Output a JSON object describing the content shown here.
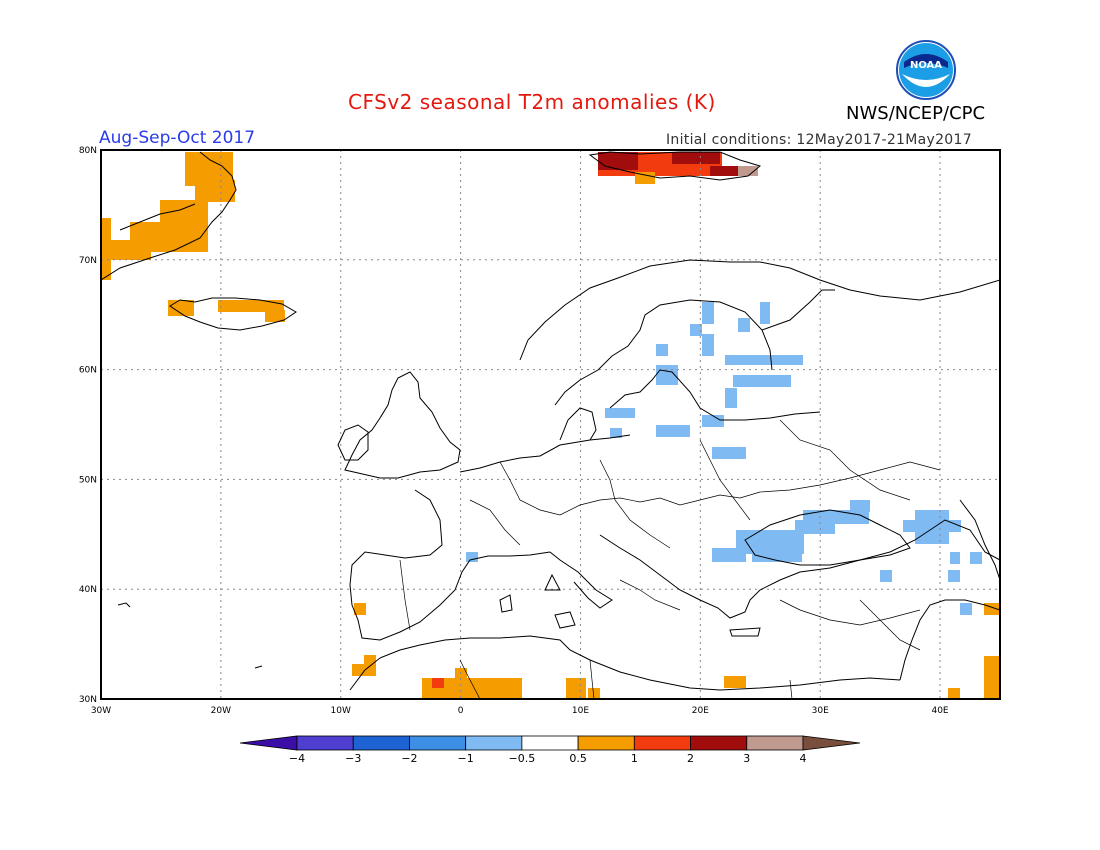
{
  "title": "CFSv2 seasonal T2m anomalies (K)",
  "agency": "NWS/NCEP/CPC",
  "season": "Aug-Sep-Oct 2017",
  "initial_conditions": "Initial conditions: 12May2017-21May2017",
  "logo": {
    "text": "NOAA",
    "icon": "noaa-logo-icon"
  },
  "map": {
    "projection": "equirectangular",
    "lon_range": [
      -30,
      45
    ],
    "lat_range": [
      30,
      80
    ],
    "gridlines": "dotted",
    "lon_ticks": [
      "30W",
      "20W",
      "10W",
      "0",
      "10E",
      "20E",
      "30E",
      "40E"
    ],
    "lat_ticks": [
      "30N",
      "40N",
      "50N",
      "60N",
      "70N",
      "80N"
    ]
  },
  "colorbar": {
    "ticks": [
      "-4",
      "-3",
      "-2",
      "-1",
      "-0.5",
      "0.5",
      "1",
      "2",
      "3",
      "4"
    ],
    "colors": [
      "#3b0fa7",
      "#4e3fd1",
      "#1e63d3",
      "#3d8fe6",
      "#7fbaf2",
      "#ffffff",
      "#f59c00",
      "#f23c10",
      "#a10c0c",
      "#c19a8f",
      "#7a4e3c"
    ]
  },
  "anomaly_regions": [
    {
      "name": "greenland",
      "level": "0.5-1"
    },
    {
      "name": "iceland",
      "level": "0.5-1"
    },
    {
      "name": "svalbard",
      "level": "1-4"
    },
    {
      "name": "scandinavia-baltic",
      "level": "-1--0.5"
    },
    {
      "name": "black-sea-region",
      "level": "-1--0.5"
    },
    {
      "name": "north-africa",
      "level": "0.5-1"
    },
    {
      "name": "middle-east",
      "level": "0.5-1"
    }
  ]
}
